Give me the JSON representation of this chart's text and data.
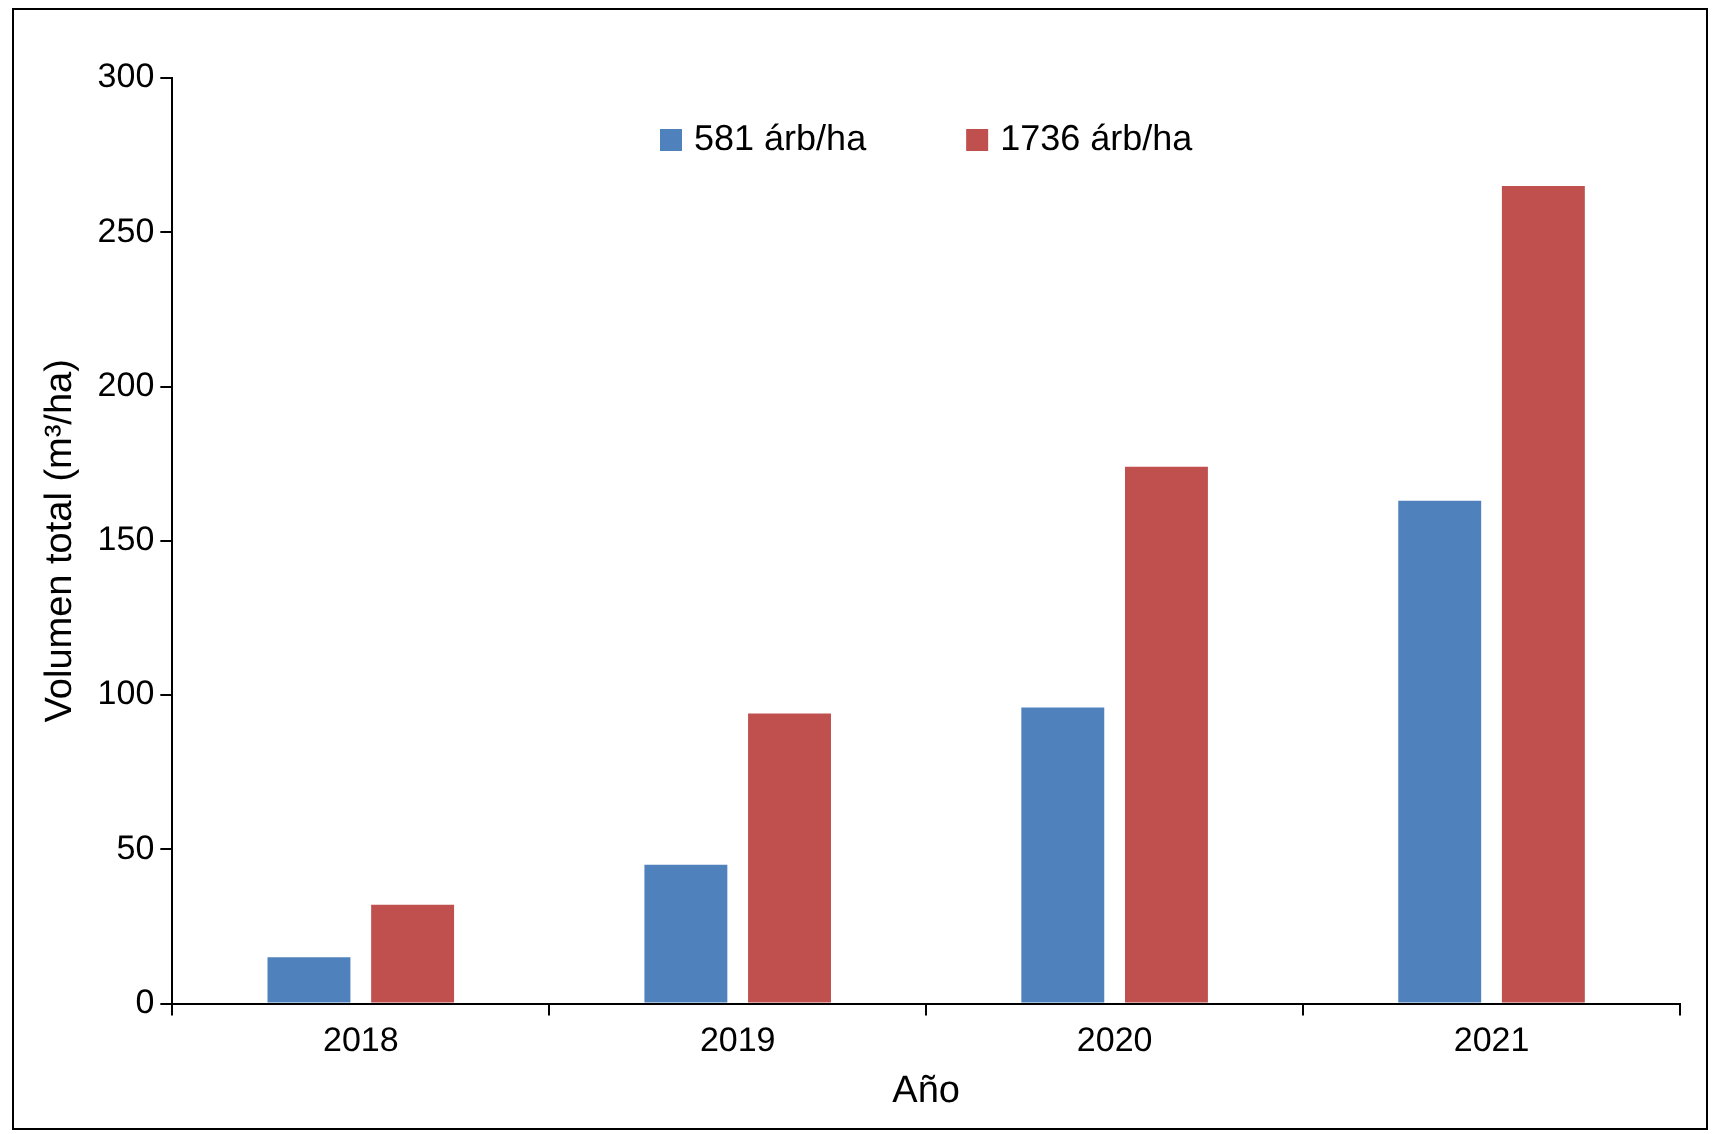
{
  "chart_data": {
    "type": "bar",
    "xlabel": "Año",
    "ylabel": "Volumen total (m³/ha)",
    "categories": [
      "2018",
      "2019",
      "2020",
      "2021"
    ],
    "series": [
      {
        "name": "581 árb/ha",
        "color": "#4f81bd",
        "values": [
          15,
          45,
          96,
          163
        ]
      },
      {
        "name": "1736 árb/ha",
        "color": "#c0504d",
        "values": [
          32,
          94,
          174,
          265
        ]
      }
    ],
    "ylim": [
      0,
      300
    ],
    "yticks": [
      0,
      50,
      100,
      150,
      200,
      250,
      300
    ],
    "grid": false,
    "legend": "top"
  }
}
